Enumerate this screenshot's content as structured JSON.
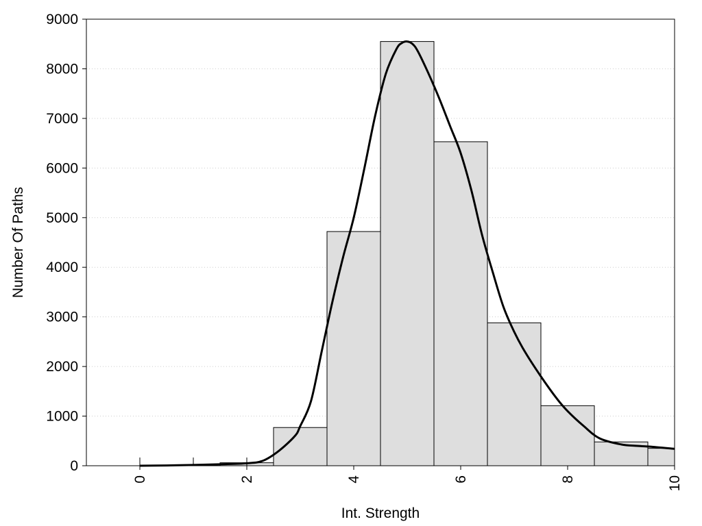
{
  "chart_data": {
    "type": "bar",
    "title": "",
    "xlabel": "Int. Strength",
    "ylabel": "Number Of Paths",
    "xlim": [
      -1,
      10
    ],
    "ylim": [
      0,
      9000
    ],
    "grid": "horizontal-dotted",
    "x_ticks": [
      0,
      2,
      4,
      6,
      8,
      10
    ],
    "y_ticks": [
      0,
      1000,
      2000,
      3000,
      4000,
      5000,
      6000,
      7000,
      8000,
      9000
    ],
    "bins": [
      {
        "x_start": 0.0,
        "x_end": 1.0,
        "value": 10
      },
      {
        "x_start": 1.0,
        "x_end": 2.0,
        "value": 20
      },
      {
        "x_start": 1.5,
        "x_end": 2.5,
        "value": 60
      },
      {
        "x_start": 2.5,
        "x_end": 3.5,
        "value": 770
      },
      {
        "x_start": 3.5,
        "x_end": 4.5,
        "value": 4720
      },
      {
        "x_start": 4.5,
        "x_end": 5.5,
        "value": 8550
      },
      {
        "x_start": 5.5,
        "x_end": 6.5,
        "value": 6530
      },
      {
        "x_start": 6.5,
        "x_end": 7.5,
        "value": 2880
      },
      {
        "x_start": 7.5,
        "x_end": 8.5,
        "value": 1210
      },
      {
        "x_start": 8.5,
        "x_end": 9.5,
        "value": 480
      },
      {
        "x_start": 9.5,
        "x_end": 10.0,
        "value": 350
      }
    ],
    "density_curve": {
      "x": [
        0,
        0.5,
        1,
        1.5,
        2,
        2.3,
        2.6,
        2.9,
        3.0,
        3.2,
        3.4,
        3.6,
        3.8,
        4.0,
        4.2,
        4.4,
        4.6,
        4.8,
        4.9,
        5.0,
        5.1,
        5.2,
        5.4,
        5.6,
        5.8,
        6.0,
        6.2,
        6.4,
        6.6,
        6.8,
        7.0,
        7.2,
        7.5,
        7.8,
        8.0,
        8.3,
        8.6,
        9.0,
        9.3,
        9.6,
        10.0
      ],
      "y": [
        0,
        5,
        15,
        30,
        50,
        100,
        300,
        600,
        800,
        1300,
        2300,
        3300,
        4200,
        5000,
        6000,
        7050,
        7900,
        8400,
        8520,
        8550,
        8500,
        8350,
        7900,
        7400,
        6850,
        6300,
        5550,
        4650,
        3900,
        3200,
        2700,
        2300,
        1800,
        1350,
        1100,
        800,
        550,
        430,
        400,
        380,
        340
      ]
    },
    "colors": {
      "bar_fill": "#dedede",
      "bar_stroke": "#000000",
      "curve": "#000000",
      "grid": "#cccccc"
    }
  }
}
